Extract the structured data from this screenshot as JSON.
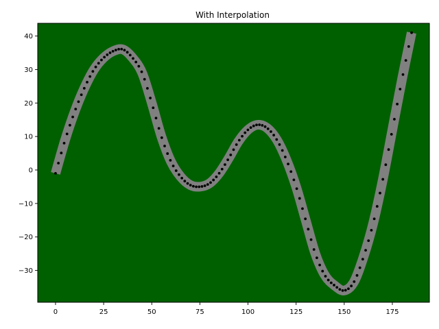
{
  "chart_data": {
    "type": "line",
    "title": "With Interpolation",
    "xlabel": "",
    "ylabel": "",
    "xlim": [
      -9.25,
      194.25
    ],
    "ylim": [
      -39.5,
      43.8
    ],
    "xticks": [
      0,
      25,
      50,
      75,
      100,
      125,
      150,
      175
    ],
    "yticks": [
      -30,
      -20,
      -10,
      0,
      10,
      20,
      30,
      40
    ],
    "grid": false,
    "legend": "none",
    "colors": {
      "background": "#006000",
      "curve": "#808080",
      "markers": "#000000"
    },
    "series": [
      {
        "style": "thick-line",
        "x": [
          0,
          5,
          10,
          15,
          20,
          25,
          30,
          35,
          40,
          45,
          50,
          55,
          60,
          65,
          70,
          75,
          80,
          85,
          90,
          95,
          100,
          105,
          110,
          115,
          120,
          125,
          130,
          135,
          140,
          145,
          150,
          155,
          160,
          165,
          170,
          175,
          180,
          185
        ],
        "y": [
          -1,
          9,
          17.5,
          24.5,
          30,
          33.5,
          35.5,
          36,
          33.5,
          29,
          20,
          10,
          2.5,
          -2,
          -4.5,
          -5,
          -4,
          -1,
          3.5,
          8.5,
          12,
          13.5,
          12.5,
          9,
          3,
          -5,
          -15,
          -25,
          -31.5,
          -34.5,
          -36,
          -33.5,
          -26,
          -16,
          -3,
          12,
          27,
          41
        ]
      },
      {
        "style": "dots",
        "x": [
          0,
          5,
          10,
          15,
          20,
          25,
          30,
          35,
          40,
          45,
          50,
          55,
          60,
          65,
          70,
          75,
          80,
          85,
          90,
          95,
          100,
          105,
          110,
          115,
          120,
          125,
          130,
          135,
          140,
          145,
          150,
          155,
          160,
          165,
          170,
          175,
          180,
          185
        ],
        "y": [
          -1,
          9,
          17.5,
          24.5,
          30,
          33.5,
          35.5,
          36,
          33.5,
          29,
          20,
          10,
          2.5,
          -2,
          -4.5,
          -5,
          -4,
          -1,
          3.5,
          8.5,
          12,
          13.5,
          12.5,
          9,
          3,
          -5,
          -15,
          -25,
          -31.5,
          -34.5,
          -36,
          -33.5,
          -26,
          -16,
          -3,
          12,
          27,
          41
        ]
      }
    ]
  }
}
